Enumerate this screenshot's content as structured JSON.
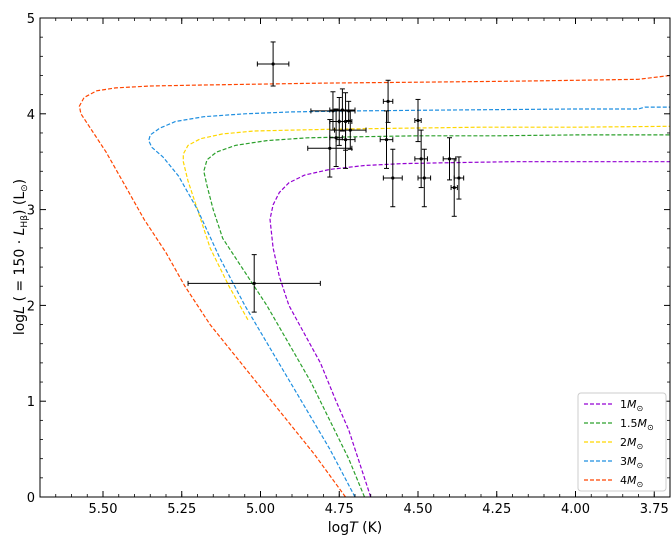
{
  "chart_data": {
    "type": "scatter",
    "title": "",
    "xlabel": "log",
    "xlabel_italic": "T",
    "xlabel_unit": " (K)",
    "ylabel": "log",
    "ylabel_italic": "L",
    "ylabel_rest": " ( = 150 · ",
    "ylabel_Lsym": "L",
    "ylabel_sub": "Hβ",
    "ylabel_unit": ") (L",
    "ylabel_sun": "⊙",
    "ylabel_close": ")",
    "xlim": [
      5.7,
      3.7
    ],
    "x_inverted": true,
    "ylim": [
      0,
      5
    ],
    "xticks": [
      5.5,
      5.25,
      5.0,
      4.75,
      4.5,
      4.25,
      4.0,
      3.75
    ],
    "xtick_labels": [
      "5.50",
      "5.25",
      "5.00",
      "4.75",
      "4.50",
      "4.25",
      "4.00",
      "3.75"
    ],
    "yticks": [
      0,
      1,
      2,
      3,
      4,
      5
    ],
    "ytick_labels": [
      "0",
      "1",
      "2",
      "3",
      "4",
      "5"
    ],
    "grid": false,
    "legend_position": "bottom-right",
    "series": [
      {
        "name_prefix": "1",
        "name_italic": "M",
        "name_sun": "⊙",
        "color": "#9400d3",
        "x": [
          4.65,
          4.68,
          4.72,
          4.76,
          4.81,
          4.86,
          4.91,
          4.94,
          4.96,
          4.97,
          4.96,
          4.94,
          4.91,
          4.86,
          4.78,
          4.67,
          4.55,
          4.4,
          4.2,
          4.0,
          3.7
        ],
        "y": [
          0.0,
          0.3,
          0.7,
          1.0,
          1.4,
          1.7,
          2.0,
          2.3,
          2.6,
          2.9,
          3.05,
          3.18,
          3.28,
          3.36,
          3.42,
          3.46,
          3.48,
          3.49,
          3.5,
          3.5,
          3.5
        ]
      },
      {
        "name_prefix": "1.5",
        "name_italic": "M",
        "name_sun": "⊙",
        "color": "#2ca02c",
        "x": [
          4.67,
          4.72,
          4.78,
          4.84,
          4.91,
          4.98,
          5.06,
          5.12,
          5.15,
          5.17,
          5.18,
          5.17,
          5.14,
          5.08,
          4.98,
          4.85,
          4.7,
          4.5,
          4.25,
          4.0,
          3.7
        ],
        "y": [
          0.0,
          0.4,
          0.8,
          1.2,
          1.6,
          2.0,
          2.4,
          2.7,
          3.0,
          3.25,
          3.4,
          3.52,
          3.6,
          3.67,
          3.72,
          3.75,
          3.76,
          3.77,
          3.77,
          3.78,
          3.78
        ]
      },
      {
        "name_prefix": "2",
        "name_italic": "M",
        "name_sun": "⊙",
        "color": "#ffd700",
        "x": [
          5.04,
          5.1,
          5.16,
          5.2,
          5.23,
          5.245,
          5.245,
          5.23,
          5.19,
          5.12,
          5.02,
          4.9,
          4.75,
          4.55,
          4.3,
          4.0,
          3.7
        ],
        "y": [
          1.85,
          2.2,
          2.6,
          3.0,
          3.3,
          3.5,
          3.58,
          3.67,
          3.74,
          3.79,
          3.82,
          3.83,
          3.84,
          3.85,
          3.86,
          3.86,
          3.87
        ]
      },
      {
        "name_prefix": "3",
        "name_italic": "M",
        "name_sun": "⊙",
        "color": "#1f8fe0",
        "x": [
          4.7,
          4.78,
          4.87,
          4.96,
          5.05,
          5.13,
          5.2,
          5.26,
          5.31,
          5.345,
          5.355,
          5.35,
          5.32,
          5.27,
          5.18,
          5.05,
          4.9,
          4.7,
          4.4,
          4.0,
          3.8,
          3.78,
          3.7
        ],
        "y": [
          0.0,
          0.5,
          1.0,
          1.5,
          2.0,
          2.5,
          3.0,
          3.35,
          3.55,
          3.65,
          3.72,
          3.78,
          3.85,
          3.92,
          3.97,
          4.0,
          4.02,
          4.03,
          4.04,
          4.05,
          4.05,
          4.07,
          4.07
        ]
      },
      {
        "name_prefix": "4",
        "name_italic": "M",
        "name_sun": "⊙",
        "color": "#ff4500",
        "x": [
          4.73,
          4.83,
          4.94,
          5.05,
          5.16,
          5.24,
          5.3,
          5.37,
          5.43,
          5.49,
          5.54,
          5.57,
          5.575,
          5.56,
          5.52,
          5.46,
          5.35,
          5.2,
          5.0,
          4.8,
          4.5,
          4.2,
          4.0,
          3.8,
          3.7
        ],
        "y": [
          0.0,
          0.45,
          0.9,
          1.35,
          1.8,
          2.2,
          2.55,
          2.9,
          3.25,
          3.6,
          3.85,
          4.0,
          4.08,
          4.17,
          4.24,
          4.27,
          4.29,
          4.3,
          4.31,
          4.32,
          4.33,
          4.34,
          4.35,
          4.36,
          4.4
        ]
      }
    ],
    "observations": [
      {
        "x": 4.96,
        "y": 4.52,
        "xerr": 0.05,
        "yerr": 0.23
      },
      {
        "x": 5.02,
        "y": 2.23,
        "xerr": 0.21,
        "yerr": 0.3
      },
      {
        "x": 4.77,
        "y": 4.03,
        "xerr": 0.07,
        "yerr": 0.2
      },
      {
        "x": 4.74,
        "y": 4.04,
        "xerr": 0.04,
        "yerr": 0.22
      },
      {
        "x": 4.72,
        "y": 4.03,
        "xerr": 0.02,
        "yerr": 0.1
      },
      {
        "x": 4.75,
        "y": 3.92,
        "xerr": 0.03,
        "yerr": 0.25
      },
      {
        "x": 4.73,
        "y": 3.92,
        "xerr": 0.02,
        "yerr": 0.3
      },
      {
        "x": 4.715,
        "y": 3.83,
        "xerr": 0.05,
        "yerr": 0.2
      },
      {
        "x": 4.76,
        "y": 3.75,
        "xerr": 0.02,
        "yerr": 0.3
      },
      {
        "x": 4.73,
        "y": 3.73,
        "xerr": 0.03,
        "yerr": 0.3
      },
      {
        "x": 4.78,
        "y": 3.64,
        "xerr": 0.07,
        "yerr": 0.3
      },
      {
        "x": 4.595,
        "y": 4.13,
        "xerr": 0.015,
        "yerr": 0.22
      },
      {
        "x": 4.6,
        "y": 3.73,
        "xerr": 0.02,
        "yerr": 0.3
      },
      {
        "x": 4.58,
        "y": 3.33,
        "xerr": 0.03,
        "yerr": 0.3
      },
      {
        "x": 4.5,
        "y": 3.93,
        "xerr": 0.01,
        "yerr": 0.22
      },
      {
        "x": 4.49,
        "y": 3.53,
        "xerr": 0.02,
        "yerr": 0.3
      },
      {
        "x": 4.48,
        "y": 3.33,
        "xerr": 0.02,
        "yerr": 0.3
      },
      {
        "x": 4.4,
        "y": 3.53,
        "xerr": 0.02,
        "yerr": 0.22
      },
      {
        "x": 4.385,
        "y": 3.23,
        "xerr": 0.01,
        "yerr": 0.3
      },
      {
        "x": 4.37,
        "y": 3.33,
        "xerr": 0.015,
        "yerr": 0.22
      }
    ]
  }
}
